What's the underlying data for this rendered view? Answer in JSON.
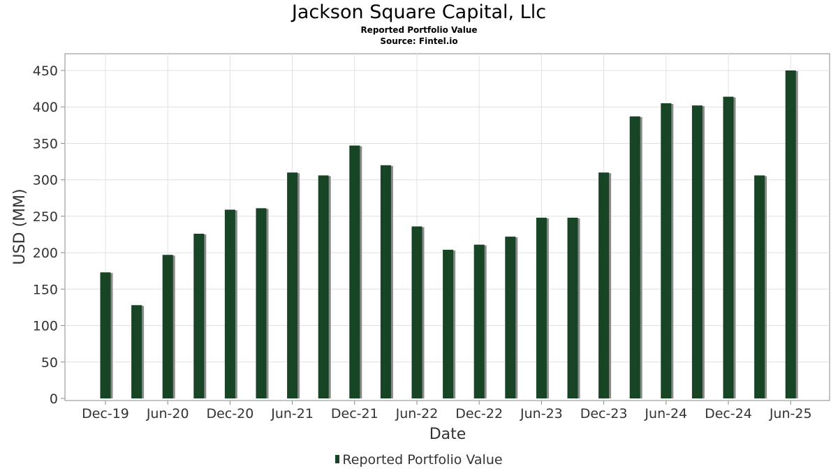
{
  "title": "Jackson Square Capital, Llc",
  "subtitle": "Reported Portfolio Value",
  "source": "Source: Fintel.io",
  "colors": {
    "bar": "#174425",
    "bar_shadow": "#8a8a8a",
    "grid": "#e0e0e0",
    "plot_border": "#888888"
  },
  "chart_data": {
    "type": "bar",
    "title": "Jackson Square Capital, Llc",
    "subtitle": "Reported Portfolio Value",
    "xlabel": "Date",
    "ylabel": "USD (MM)",
    "ylim": [
      0,
      470
    ],
    "yticks": [
      0,
      50,
      100,
      150,
      200,
      250,
      300,
      350,
      400,
      450
    ],
    "grid": true,
    "legend_position": "bottom-center",
    "xtick_labels": [
      "Dec-19",
      "Jun-20",
      "Dec-20",
      "Jun-21",
      "Dec-21",
      "Jun-22",
      "Dec-22",
      "Jun-23",
      "Dec-23",
      "Jun-24",
      "Dec-24",
      "Jun-25"
    ],
    "categories": [
      "2019-12",
      "2020-03",
      "2020-06",
      "2020-09",
      "2020-12",
      "2021-03",
      "2021-06",
      "2021-09",
      "2021-12",
      "2022-03",
      "2022-06",
      "2022-09",
      "2022-12",
      "2023-03",
      "2023-06",
      "2023-09",
      "2023-12",
      "2024-03",
      "2024-06",
      "2024-09",
      "2024-12",
      "2025-03",
      "2025-06"
    ],
    "series": [
      {
        "name": "Reported Portfolio Value",
        "values": [
          173,
          128,
          197,
          226,
          259,
          261,
          310,
          306,
          347,
          320,
          236,
          204,
          211,
          222,
          248,
          248,
          310,
          387,
          405,
          402,
          414,
          306,
          450
        ]
      }
    ]
  }
}
